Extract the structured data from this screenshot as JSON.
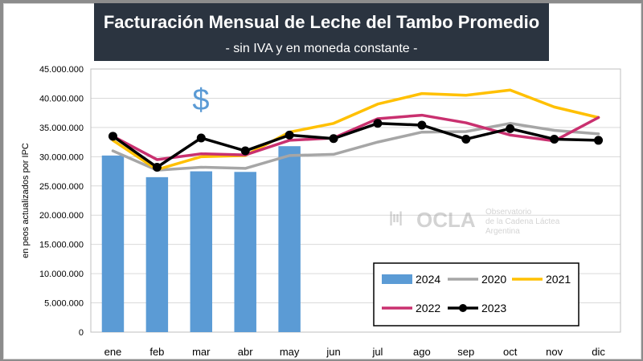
{
  "title": "Facturación Mensual de Leche del Tambo Promedio",
  "subtitle": "- sin IVA y en moneda constante -",
  "currency_symbol": "$",
  "watermark": {
    "mark": "|ıı|",
    "name": "OCLA",
    "line1": "Observatorio",
    "line2": "de la Cadena Láctea",
    "line3": "Argentina"
  },
  "colors": {
    "2024": "#5b9bd5",
    "2020": "#a6a6a6",
    "2021": "#ffc000",
    "2022": "#c9306f",
    "2023": "#000000",
    "title_bg": "#2b3440",
    "dollar": "#5b9bd5"
  },
  "chart_data": {
    "type": "bar+line",
    "title": "Facturación Mensual de Leche del Tambo Promedio",
    "subtitle": "- sin IVA y en moneda constante -",
    "ylabel": "en peos actualizados por IPC",
    "xlabel": "",
    "ylim": [
      0,
      45000000
    ],
    "yticks": [
      0,
      5000000,
      10000000,
      15000000,
      20000000,
      25000000,
      30000000,
      35000000,
      40000000,
      45000000
    ],
    "ytick_labels": [
      "0",
      "5.000.000",
      "10.000.000",
      "15.000.000",
      "20.000.000",
      "25.000.000",
      "30.000.000",
      "35.000.000",
      "40.000.000",
      "45.000.000"
    ],
    "categories": [
      "ene",
      "feb",
      "mar",
      "abr",
      "may",
      "jun",
      "jul",
      "ago",
      "sep",
      "oct",
      "nov",
      "dic"
    ],
    "bars": {
      "name": "2024",
      "values": [
        30200000,
        26500000,
        27500000,
        27400000,
        31800000
      ]
    },
    "series": [
      {
        "name": "2020",
        "values": [
          31000000,
          27700000,
          28200000,
          28000000,
          30200000,
          30400000,
          32500000,
          34200000,
          34300000,
          35700000,
          34500000,
          33900000
        ]
      },
      {
        "name": "2021",
        "values": [
          32800000,
          27800000,
          30000000,
          30200000,
          34200000,
          35700000,
          39000000,
          40800000,
          40500000,
          41400000,
          38500000,
          36700000
        ]
      },
      {
        "name": "2022",
        "values": [
          33500000,
          29500000,
          30500000,
          30300000,
          32800000,
          33200000,
          36500000,
          37100000,
          35800000,
          33700000,
          32700000,
          36700000
        ]
      },
      {
        "name": "2023",
        "values": [
          33500000,
          28200000,
          33200000,
          31000000,
          33700000,
          33100000,
          35700000,
          35400000,
          33000000,
          34800000,
          33000000,
          32800000
        ]
      }
    ],
    "legend": {
      "position": "bottom-right",
      "entries": [
        {
          "name": "2024",
          "style": "bar"
        },
        {
          "name": "2020",
          "style": "line"
        },
        {
          "name": "2021",
          "style": "line"
        },
        {
          "name": "2022",
          "style": "line"
        },
        {
          "name": "2023",
          "style": "line-marker"
        }
      ]
    },
    "grid": true
  }
}
